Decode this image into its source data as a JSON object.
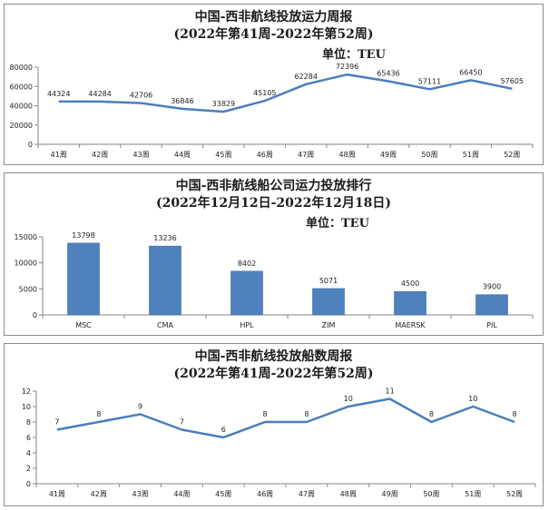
{
  "chart_data": [
    {
      "type": "line",
      "title": "中国-西非航线投放运力周报",
      "subtitle": "(2022年第41周-2022年第52周)",
      "unit": "单位：TEU",
      "categories": [
        "41周",
        "42周",
        "43周",
        "44周",
        "45周",
        "46周",
        "47周",
        "48周",
        "49周",
        "50周",
        "51周",
        "52周"
      ],
      "values": [
        44324,
        44284,
        42706,
        36846,
        33829,
        45105,
        62284,
        72396,
        65436,
        57111,
        66450,
        57605
      ],
      "yticks": [
        0,
        20000,
        40000,
        60000,
        80000
      ],
      "ylim": [
        0,
        80000
      ],
      "color": "#4a7ebb",
      "xlabel": "",
      "ylabel": ""
    },
    {
      "type": "bar",
      "title": "中国-西非航线船公司运力投放排行",
      "subtitle": "(2022年12月12日-2022年12月18日)",
      "unit": "单位：TEU",
      "categories": [
        "MSC",
        "CMA",
        "HPL",
        "ZIM",
        "MAERSK",
        "PIL"
      ],
      "values": [
        13798,
        13236,
        8402,
        5071,
        4500,
        3900
      ],
      "yticks": [
        0,
        5000,
        10000,
        15000
      ],
      "ylim": [
        0,
        15000
      ],
      "color": "#4f81bd",
      "xlabel": "",
      "ylabel": ""
    },
    {
      "type": "line",
      "title": "中国-西非航线投放船数周报",
      "subtitle": "(2022年第41周-2022年第52周)",
      "categories": [
        "41周",
        "42周",
        "43周",
        "44周",
        "45周",
        "46周",
        "47周",
        "48周",
        "49周",
        "50周",
        "51周",
        "52周"
      ],
      "values": [
        7,
        8,
        9,
        7,
        6,
        8,
        8,
        10,
        11,
        8,
        10,
        8
      ],
      "yticks": [
        0,
        2,
        4,
        6,
        8,
        10,
        12
      ],
      "ylim": [
        0,
        12
      ],
      "color": "#4a7ebb",
      "xlabel": "",
      "ylabel": ""
    }
  ]
}
